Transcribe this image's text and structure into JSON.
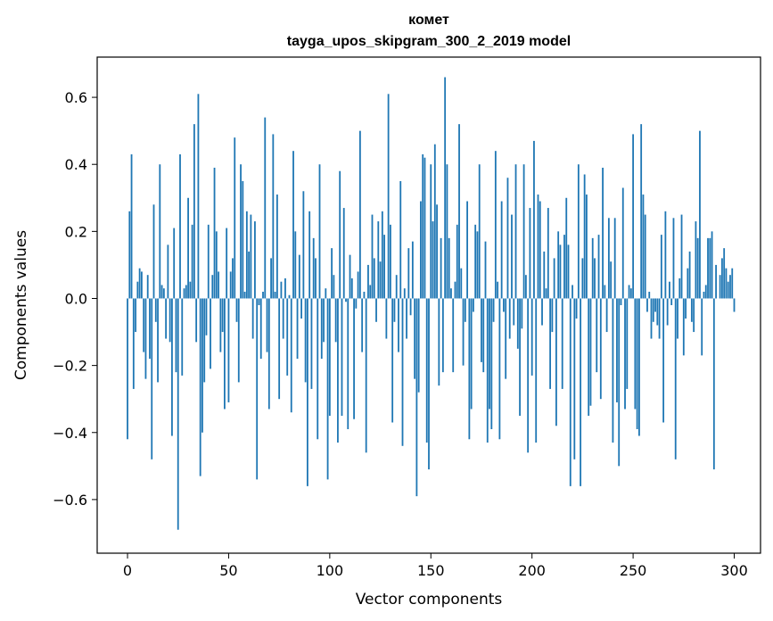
{
  "chart_data": {
    "type": "bar",
    "title": "комет",
    "subtitle": "tayga_upos_skipgram_300_2_2019 model",
    "xlabel": "Vector components",
    "ylabel": "Components values",
    "xlim": [
      -15,
      313
    ],
    "ylim": [
      -0.76,
      0.72
    ],
    "xticks": [
      0,
      50,
      100,
      150,
      200,
      250,
      300
    ],
    "xtick_labels": [
      "0",
      "50",
      "100",
      "150",
      "200",
      "250",
      "300"
    ],
    "yticks": [
      -0.6,
      -0.4,
      -0.2,
      0.0,
      0.2,
      0.4,
      0.6
    ],
    "ytick_labels": [
      "−0.6",
      "−0.4",
      "−0.2",
      "0.0",
      "0.2",
      "0.4",
      "0.6"
    ],
    "grid": false,
    "bar_color": "#1f77b4",
    "values": [
      -0.42,
      0.26,
      0.43,
      -0.27,
      -0.1,
      0.05,
      0.09,
      0.08,
      -0.16,
      -0.24,
      0.07,
      -0.18,
      -0.48,
      0.28,
      -0.07,
      -0.25,
      0.4,
      0.04,
      0.03,
      -0.12,
      0.16,
      -0.13,
      -0.41,
      0.21,
      -0.22,
      -0.69,
      0.43,
      -0.23,
      0.03,
      0.04,
      0.3,
      0.05,
      0.22,
      0.52,
      -0.13,
      0.61,
      -0.53,
      -0.4,
      -0.25,
      -0.11,
      0.22,
      -0.21,
      0.07,
      0.39,
      0.2,
      0.08,
      -0.16,
      -0.1,
      -0.33,
      0.21,
      -0.31,
      0.08,
      0.12,
      0.48,
      -0.07,
      -0.25,
      0.4,
      0.35,
      0.02,
      0.26,
      0.14,
      0.25,
      -0.12,
      0.23,
      -0.54,
      -0.02,
      -0.18,
      0.02,
      0.54,
      -0.16,
      -0.33,
      0.12,
      0.49,
      0.02,
      0.31,
      -0.3,
      0.05,
      -0.12,
      0.06,
      -0.23,
      0.01,
      -0.34,
      0.44,
      0.2,
      -0.18,
      0.13,
      -0.06,
      0.32,
      -0.25,
      -0.56,
      0.26,
      -0.27,
      0.18,
      0.12,
      -0.42,
      0.4,
      -0.18,
      -0.13,
      0.03,
      -0.54,
      -0.35,
      0.15,
      0.07,
      -0.13,
      -0.43,
      0.38,
      -0.35,
      0.27,
      -0.01,
      -0.39,
      0.13,
      0.06,
      -0.36,
      -0.03,
      0.08,
      0.5,
      -0.16,
      0.02,
      -0.46,
      0.1,
      0.04,
      0.25,
      0.12,
      -0.07,
      0.23,
      0.11,
      0.26,
      0.19,
      -0.12,
      0.61,
      0.22,
      -0.37,
      -0.07,
      0.07,
      -0.16,
      0.35,
      -0.44,
      0.03,
      -0.12,
      0.15,
      -0.05,
      0.17,
      -0.24,
      -0.59,
      -0.28,
      0.29,
      0.43,
      0.42,
      -0.43,
      -0.51,
      0.4,
      0.23,
      0.46,
      0.28,
      -0.26,
      0.18,
      -0.22,
      0.66,
      0.4,
      0.18,
      0.03,
      -0.22,
      0.05,
      0.22,
      0.52,
      0.09,
      -0.2,
      -0.07,
      0.29,
      -0.42,
      -0.33,
      -0.04,
      0.22,
      0.2,
      0.4,
      -0.19,
      -0.22,
      0.17,
      -0.43,
      -0.33,
      -0.39,
      -0.07,
      0.44,
      0.05,
      -0.42,
      0.29,
      -0.04,
      -0.24,
      0.36,
      -0.12,
      0.25,
      -0.08,
      0.4,
      -0.15,
      -0.35,
      -0.09,
      0.4,
      0.07,
      -0.46,
      0.27,
      -0.23,
      0.47,
      -0.43,
      0.31,
      0.29,
      -0.08,
      0.14,
      0.03,
      0.27,
      -0.27,
      -0.1,
      0.12,
      -0.38,
      0.2,
      0.16,
      -0.27,
      0.19,
      0.3,
      0.16,
      -0.56,
      0.04,
      -0.48,
      -0.06,
      0.4,
      -0.56,
      0.12,
      0.37,
      0.31,
      -0.35,
      -0.32,
      0.18,
      0.12,
      -0.22,
      0.19,
      -0.3,
      0.39,
      0.04,
      -0.1,
      0.24,
      0.11,
      -0.43,
      0.24,
      -0.31,
      -0.5,
      -0.02,
      0.33,
      -0.33,
      -0.27,
      0.04,
      0.03,
      0.49,
      -0.33,
      -0.39,
      -0.41,
      0.52,
      0.31,
      0.25,
      -0.04,
      0.02,
      -0.12,
      -0.07,
      -0.04,
      -0.08,
      -0.12,
      0.19,
      -0.37,
      0.26,
      -0.08,
      0.05,
      -0.02,
      0.24,
      -0.48,
      -0.12,
      0.06,
      0.25,
      -0.17,
      -0.06,
      0.09,
      0.14,
      -0.07,
      -0.1,
      0.23,
      0.18,
      0.5,
      -0.17,
      0.02,
      0.04,
      0.18,
      0.18,
      0.2,
      -0.51,
      0.1,
      0.0,
      0.07,
      0.12,
      0.15,
      0.09,
      0.05,
      0.07,
      0.09,
      -0.04
    ]
  }
}
